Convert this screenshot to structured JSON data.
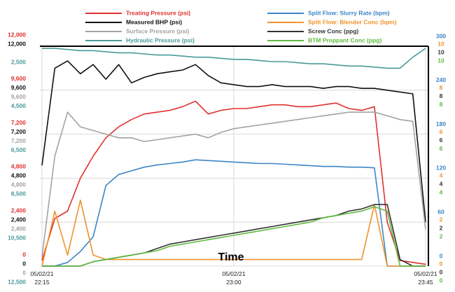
{
  "chart_data": {
    "type": "line",
    "legend": "top",
    "grid": true,
    "x_label": "Time",
    "xlim": [
      0,
      90
    ],
    "xticks": [
      {
        "value": 0,
        "label": "05/02/21 22:15"
      },
      {
        "value": 45,
        "label": "05/02/21 23:00"
      },
      {
        "value": 90,
        "label": "05/02/21 23:45"
      }
    ],
    "x": [
      0,
      3,
      6,
      9,
      12,
      15,
      18,
      21,
      24,
      27,
      30,
      33,
      36,
      39,
      42,
      45,
      48,
      51,
      54,
      57,
      60,
      63,
      66,
      69,
      72,
      75,
      78,
      81,
      84,
      87,
      90
    ],
    "series": [
      {
        "name": "Treating Pressure (psi)",
        "color": "#e0312f",
        "side": "left",
        "ylim": [
          0,
          12000
        ],
        "yticks": [
          0,
          {
            "value": 2400,
            "label": "2,400"
          },
          {
            "value": 4800,
            "label": "4,800"
          },
          {
            "value": 7200,
            "label": "7,200"
          },
          {
            "value": 9600,
            "label": "9,600"
          },
          {
            "value": 12000,
            "label": "12,000"
          }
        ],
        "values": [
          300,
          2600,
          3000,
          4800,
          6000,
          7000,
          7600,
          8000,
          8300,
          8400,
          8500,
          8700,
          9000,
          8300,
          8500,
          8600,
          8600,
          8700,
          8800,
          8800,
          8700,
          8700,
          8800,
          8900,
          8600,
          8500,
          8700,
          2400,
          300,
          200,
          100
        ]
      },
      {
        "name": "Measured BHP (psi)",
        "color": "#111111",
        "side": "left",
        "ylim": [
          0,
          12000
        ],
        "yticks": [
          0,
          {
            "value": 2400,
            "label": "2,400"
          },
          {
            "value": 4800,
            "label": "4,800"
          },
          {
            "value": 7200,
            "label": "7,200"
          },
          {
            "value": 9600,
            "label": "9,600"
          },
          {
            "value": 12000,
            "label": "12,000"
          }
        ],
        "values": [
          5500,
          10800,
          11200,
          10500,
          11000,
          10200,
          11000,
          10000,
          10300,
          10500,
          10600,
          10700,
          11000,
          10400,
          10000,
          9900,
          9800,
          9800,
          9900,
          9800,
          9800,
          9800,
          9700,
          9800,
          9800,
          9700,
          9700,
          9600,
          9500,
          9400,
          2400
        ]
      },
      {
        "name": "Surface Pressure (psi)",
        "color": "#a3a3a3",
        "side": "left",
        "ylim": [
          0,
          12000
        ],
        "yticks": [
          0,
          {
            "value": 2400,
            "label": "2,400"
          },
          {
            "value": 4800,
            "label": "4,800"
          },
          {
            "value": 7200,
            "label": "7,200"
          },
          {
            "value": 9600,
            "label": "9,600"
          }
        ],
        "values": [
          500,
          6000,
          8400,
          7600,
          7400,
          7200,
          7000,
          7000,
          6800,
          6900,
          7000,
          7100,
          7200,
          7000,
          7300,
          7500,
          7600,
          7700,
          7800,
          7900,
          8000,
          8100,
          8200,
          8300,
          8400,
          8400,
          8400,
          8200,
          8000,
          7900,
          2000
        ]
      },
      {
        "name": "Hydraulic Pressure (psi)",
        "color": "#4a9a9a",
        "side": "left",
        "ylim": [
          12500,
          2500
        ],
        "yticks": [
          {
            "value": 2500,
            "label": "2,500"
          },
          {
            "value": 4500,
            "label": "4,500"
          },
          {
            "value": 6500,
            "label": "6,500"
          },
          {
            "value": 8500,
            "label": "8,500"
          },
          {
            "value": 10500,
            "label": "10,500"
          },
          {
            "value": 12500,
            "label": "12,500"
          }
        ],
        "values": [
          2600,
          2600,
          2650,
          2700,
          2700,
          2750,
          2800,
          2800,
          2850,
          2900,
          2900,
          2950,
          3000,
          3000,
          3050,
          3100,
          3100,
          3150,
          3200,
          3200,
          3250,
          3300,
          3300,
          3350,
          3400,
          3400,
          3450,
          3500,
          3500,
          3000,
          2600
        ]
      },
      {
        "name": "Split Flow: Slurry Rate (bpm)",
        "color": "#3d85c6",
        "side": "right",
        "ylim": [
          0,
          300
        ],
        "yticks": [
          0,
          60,
          120,
          180,
          240,
          300
        ],
        "values": [
          0,
          0,
          5,
          20,
          40,
          110,
          125,
          130,
          135,
          138,
          140,
          142,
          145,
          144,
          143,
          142,
          141,
          140,
          140,
          139,
          138,
          137,
          136,
          136,
          135,
          135,
          134,
          0,
          0,
          0,
          0
        ]
      },
      {
        "name": "Split Flow: Blender Conc (bpm)",
        "color": "#f0932b",
        "side": "right",
        "ylim": [
          0,
          10
        ],
        "yticks": [
          0,
          2,
          4,
          6,
          8,
          10
        ],
        "values": [
          0,
          2.5,
          0.5,
          3,
          0.5,
          0.3,
          0.3,
          0.3,
          0.3,
          0.3,
          0.3,
          0.3,
          0.3,
          0.3,
          0.3,
          0.3,
          0.3,
          0.3,
          0.3,
          0.3,
          0.3,
          0.3,
          0.3,
          0.3,
          0.3,
          0.3,
          2.8,
          0,
          0,
          0,
          0
        ]
      },
      {
        "name": "Screw Conc (ppg)",
        "color": "#333333",
        "side": "right",
        "ylim": [
          0,
          10
        ],
        "yticks": [
          0,
          2,
          4,
          6,
          8,
          10
        ],
        "values": [
          0,
          0,
          0,
          0,
          0.2,
          0.3,
          0.4,
          0.5,
          0.6,
          0.8,
          1.0,
          1.1,
          1.2,
          1.3,
          1.4,
          1.5,
          1.6,
          1.7,
          1.8,
          1.9,
          2.0,
          2.1,
          2.2,
          2.3,
          2.5,
          2.6,
          2.8,
          2.8,
          0.3,
          0,
          0
        ]
      },
      {
        "name": "BTM Proppant Conc (ppg)",
        "color": "#5dbb3f",
        "side": "right",
        "ylim": [
          0,
          10
        ],
        "yticks": [
          0,
          2,
          4,
          6,
          8,
          10
        ],
        "values": [
          0,
          0,
          0,
          0,
          0.2,
          0.3,
          0.4,
          0.5,
          0.6,
          0.7,
          0.9,
          1.0,
          1.1,
          1.2,
          1.3,
          1.4,
          1.5,
          1.6,
          1.7,
          1.8,
          1.9,
          2.0,
          2.2,
          2.3,
          2.4,
          2.5,
          2.7,
          2.5,
          0,
          0,
          0
        ]
      }
    ]
  }
}
